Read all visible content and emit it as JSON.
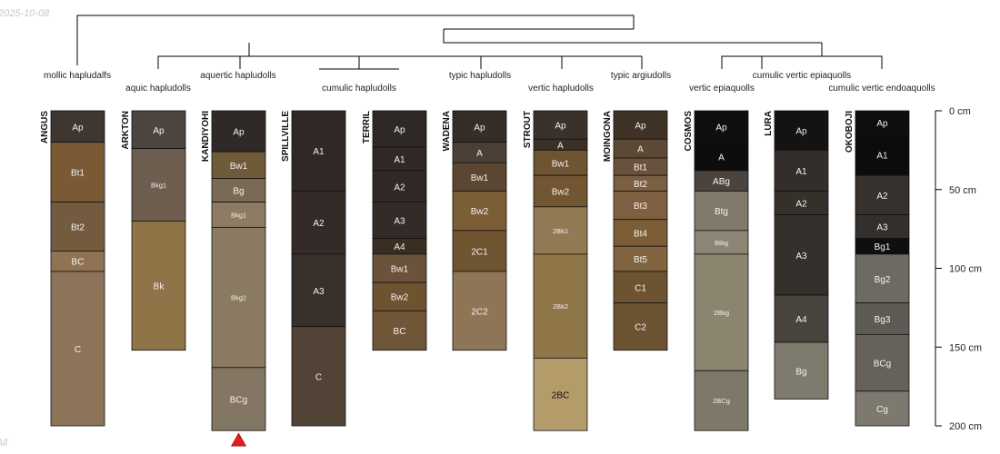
{
  "date_stamp": "2025-10-08",
  "corner_note": "All",
  "depth_axis": {
    "unit": "cm",
    "min": 0,
    "max": 200,
    "ticks": [
      0,
      50,
      100,
      150,
      200
    ]
  },
  "accent": {
    "marker": "#e41a1c",
    "line": "#000000",
    "border": "#111111"
  },
  "taxa": [
    "mollic hapludalfs",
    "aquic hapludolls",
    "aquertic hapludolls",
    "cumulic hapludolls",
    "typic hapludolls",
    "vertic hapludolls",
    "typic argiudolls",
    "vertic epiaquolls",
    "cumulic vertic epiaquolls",
    "cumulic vertic endoaquolls"
  ],
  "profiles": [
    {
      "name": "ANGUS",
      "horizons": [
        {
          "name": "Ap",
          "top": 0,
          "bottom": 20,
          "color": "#3d3631"
        },
        {
          "name": "Bt1",
          "top": 20,
          "bottom": 58,
          "color": "#7a5a35"
        },
        {
          "name": "Bt2",
          "top": 58,
          "bottom": 89,
          "color": "#745b3f"
        },
        {
          "name": "BC",
          "top": 89,
          "bottom": 102,
          "color": "#8f7352"
        },
        {
          "name": "C",
          "top": 102,
          "bottom": 200,
          "color": "#8d7358"
        }
      ]
    },
    {
      "name": "ARKTON",
      "horizons": [
        {
          "name": "Ap",
          "top": 0,
          "bottom": 24,
          "color": "#4d4540"
        },
        {
          "name": "Bkg1",
          "top": 24,
          "bottom": 70,
          "color": "#6e5e4f"
        },
        {
          "name": "Bk",
          "top": 70,
          "bottom": 152,
          "color": "#8e7447"
        }
      ]
    },
    {
      "name": "KANDIYOHI",
      "horizons": [
        {
          "name": "Ap",
          "top": 0,
          "bottom": 26,
          "color": "#2f2a27"
        },
        {
          "name": "Bw1",
          "top": 26,
          "bottom": 43,
          "color": "#6f5a3a"
        },
        {
          "name": "Bg",
          "top": 43,
          "bottom": 58,
          "color": "#7a6a55"
        },
        {
          "name": "Bkg1",
          "top": 58,
          "bottom": 74,
          "color": "#8e7b63"
        },
        {
          "name": "Bkg2",
          "top": 74,
          "bottom": 163,
          "color": "#8b7a62"
        },
        {
          "name": "BCg",
          "top": 163,
          "bottom": 203,
          "color": "#837764"
        }
      ]
    },
    {
      "name": "SPILLVILLE",
      "horizons": [
        {
          "name": "A1",
          "top": 0,
          "bottom": 51,
          "color": "#2f2826"
        },
        {
          "name": "A2",
          "top": 51,
          "bottom": 91,
          "color": "#342b28"
        },
        {
          "name": "A3",
          "top": 91,
          "bottom": 137,
          "color": "#37302b"
        },
        {
          "name": "C",
          "top": 137,
          "bottom": 200,
          "color": "#514437"
        }
      ]
    },
    {
      "name": "TERRIL",
      "horizons": [
        {
          "name": "Ap",
          "top": 0,
          "bottom": 23,
          "color": "#2e2826"
        },
        {
          "name": "A1",
          "top": 23,
          "bottom": 38,
          "color": "#2f2826"
        },
        {
          "name": "A2",
          "top": 38,
          "bottom": 58,
          "color": "#2f2826"
        },
        {
          "name": "A3",
          "top": 58,
          "bottom": 81,
          "color": "#322b27"
        },
        {
          "name": "A4",
          "top": 81,
          "bottom": 91,
          "color": "#3a2e22"
        },
        {
          "name": "Bw1",
          "top": 91,
          "bottom": 109,
          "color": "#6b523a"
        },
        {
          "name": "Bw2",
          "top": 109,
          "bottom": 127,
          "color": "#6f5331"
        },
        {
          "name": "BC",
          "top": 127,
          "bottom": 152,
          "color": "#6f5637"
        }
      ]
    },
    {
      "name": "WADENA",
      "horizons": [
        {
          "name": "Ap",
          "top": 0,
          "bottom": 20,
          "color": "#342d28"
        },
        {
          "name": "A",
          "top": 20,
          "bottom": 33,
          "color": "#4a4037"
        },
        {
          "name": "Bw1",
          "top": 33,
          "bottom": 51,
          "color": "#5b4731"
        },
        {
          "name": "Bw2",
          "top": 51,
          "bottom": 76,
          "color": "#7c5e36"
        },
        {
          "name": "2C1",
          "top": 76,
          "bottom": 102,
          "color": "#6f5432"
        },
        {
          "name": "2C2",
          "top": 102,
          "bottom": 152,
          "color": "#8e7556"
        }
      ]
    },
    {
      "name": "STROUT",
      "horizons": [
        {
          "name": "Ap",
          "top": 0,
          "bottom": 18,
          "color": "#3a312b"
        },
        {
          "name": "A",
          "top": 18,
          "bottom": 25,
          "color": "#3a3029"
        },
        {
          "name": "Bw1",
          "top": 25,
          "bottom": 41,
          "color": "#6e5431"
        },
        {
          "name": "Bw2",
          "top": 41,
          "bottom": 61,
          "color": "#715631"
        },
        {
          "name": "2Bk1",
          "top": 61,
          "bottom": 91,
          "color": "#927a55"
        },
        {
          "name": "2Bk2",
          "top": 91,
          "bottom": 157,
          "color": "#8f7649"
        },
        {
          "name": "2BC",
          "top": 157,
          "bottom": 203,
          "color": "#b39b6a"
        }
      ]
    },
    {
      "name": "MOINGONA",
      "horizons": [
        {
          "name": "Ap",
          "top": 0,
          "bottom": 18,
          "color": "#3e3126"
        },
        {
          "name": "A",
          "top": 18,
          "bottom": 30,
          "color": "#5b4936"
        },
        {
          "name": "Bt1",
          "top": 30,
          "bottom": 41,
          "color": "#6a533c"
        },
        {
          "name": "Bt2",
          "top": 41,
          "bottom": 51,
          "color": "#7b5f41"
        },
        {
          "name": "Bt3",
          "top": 51,
          "bottom": 69,
          "color": "#7d6142"
        },
        {
          "name": "Bt4",
          "top": 69,
          "bottom": 86,
          "color": "#7d5d35"
        },
        {
          "name": "Bt5",
          "top": 86,
          "bottom": 102,
          "color": "#80643f"
        },
        {
          "name": "C1",
          "top": 102,
          "bottom": 122,
          "color": "#6d5332"
        },
        {
          "name": "C2",
          "top": 122,
          "bottom": 152,
          "color": "#6b5332"
        }
      ]
    },
    {
      "name": "COSMOS",
      "horizons": [
        {
          "name": "Ap",
          "top": 0,
          "bottom": 20,
          "color": "#0f0f0f"
        },
        {
          "name": "A",
          "top": 20,
          "bottom": 38,
          "color": "#0d0d0d"
        },
        {
          "name": "ABg",
          "top": 38,
          "bottom": 51,
          "color": "#4b443e"
        },
        {
          "name": "Btg",
          "top": 51,
          "bottom": 76,
          "color": "#817a6a"
        },
        {
          "name": "Btkg",
          "top": 76,
          "bottom": 91,
          "color": "#8d8573"
        },
        {
          "name": "2Bkg",
          "top": 91,
          "bottom": 165,
          "color": "#8b8570"
        },
        {
          "name": "2BCg",
          "top": 165,
          "bottom": 203,
          "color": "#7e7868"
        }
      ]
    },
    {
      "name": "LURA",
      "horizons": [
        {
          "name": "Ap",
          "top": 0,
          "bottom": 25,
          "color": "#141312"
        },
        {
          "name": "A1",
          "top": 25,
          "bottom": 51,
          "color": "#332e2b"
        },
        {
          "name": "A2",
          "top": 51,
          "bottom": 66,
          "color": "#36302b"
        },
        {
          "name": "A3",
          "top": 66,
          "bottom": 117,
          "color": "#34302c"
        },
        {
          "name": "A4",
          "top": 117,
          "bottom": 147,
          "color": "#48443d"
        },
        {
          "name": "Bg",
          "top": 147,
          "bottom": 183,
          "color": "#7f7a6e"
        }
      ]
    },
    {
      "name": "OKOBOJI",
      "horizons": [
        {
          "name": "Ap",
          "top": 0,
          "bottom": 15,
          "color": "#0f0e0d"
        },
        {
          "name": "A1",
          "top": 15,
          "bottom": 41,
          "color": "#0d0c0c"
        },
        {
          "name": "A2",
          "top": 41,
          "bottom": 66,
          "color": "#37312d"
        },
        {
          "name": "A3",
          "top": 66,
          "bottom": 81,
          "color": "#332f2c"
        },
        {
          "name": "Bg1",
          "top": 81,
          "bottom": 91,
          "color": "#0e0f0e"
        },
        {
          "name": "Bg2",
          "top": 91,
          "bottom": 122,
          "color": "#6d6a61"
        },
        {
          "name": "Bg3",
          "top": 122,
          "bottom": 142,
          "color": "#5e5b55"
        },
        {
          "name": "BCg",
          "top": 142,
          "bottom": 178,
          "color": "#66615a"
        },
        {
          "name": "Cg",
          "top": 178,
          "bottom": 200,
          "color": "#7d796f"
        }
      ]
    }
  ],
  "truncated_profile": "KANDIYOHI"
}
